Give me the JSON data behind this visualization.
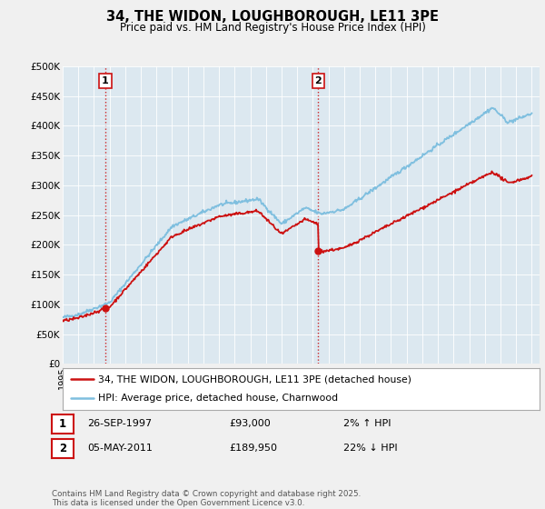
{
  "title": "34, THE WIDON, LOUGHBOROUGH, LE11 3PE",
  "subtitle": "Price paid vs. HM Land Registry's House Price Index (HPI)",
  "ylim": [
    0,
    500000
  ],
  "yticks": [
    0,
    50000,
    100000,
    150000,
    200000,
    250000,
    300000,
    350000,
    400000,
    450000,
    500000
  ],
  "hpi_color": "#7fbfdf",
  "price_color": "#cc1111",
  "sale1_t": 1997.73,
  "sale1_p": 93000,
  "sale2_t": 2011.34,
  "sale2_p": 189950,
  "annotation1_date": "26-SEP-1997",
  "annotation1_price": "£93,000",
  "annotation1_hpi": "2% ↑ HPI",
  "annotation2_date": "05-MAY-2011",
  "annotation2_price": "£189,950",
  "annotation2_hpi": "22% ↓ HPI",
  "legend_label1": "34, THE WIDON, LOUGHBOROUGH, LE11 3PE (detached house)",
  "legend_label2": "HPI: Average price, detached house, Charnwood",
  "footer": "Contains HM Land Registry data © Crown copyright and database right 2025.\nThis data is licensed under the Open Government Licence v3.0.",
  "background_color": "#f0f0f0",
  "plot_bg_color": "#dce8f0",
  "grid_color": "#ffffff"
}
